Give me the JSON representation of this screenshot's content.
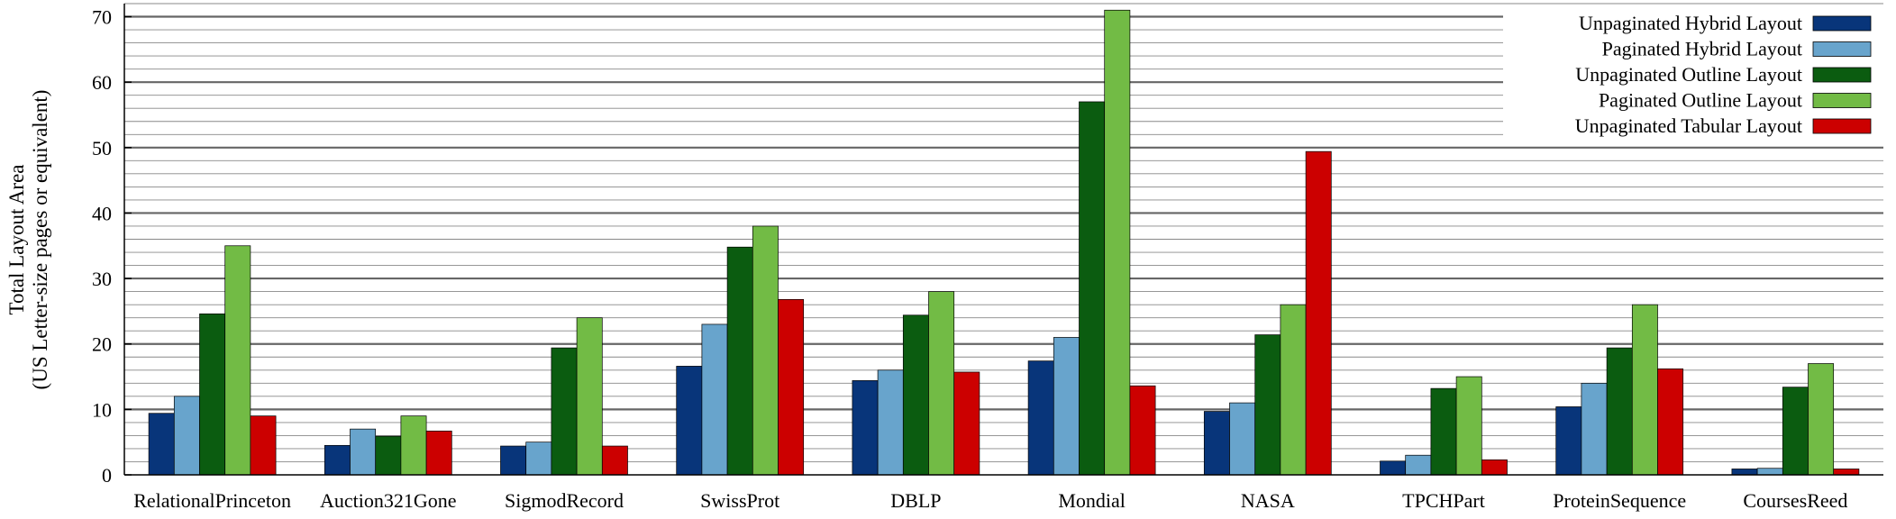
{
  "chart_data": {
    "type": "bar",
    "title": "",
    "xlabel": "",
    "ylabel": [
      "Total Layout Area",
      "(US Letter-size pages or equivalent)"
    ],
    "ylim": [
      0,
      72
    ],
    "yticks": [
      0,
      10,
      20,
      30,
      40,
      50,
      60,
      70
    ],
    "minor_grid_step": 2,
    "grid": true,
    "legend_position": "top-right",
    "categories": [
      "RelationalPrinceton",
      "Auction321Gone",
      "SigmodRecord",
      "SwissProt",
      "DBLP",
      "Mondial",
      "NASA",
      "TPCHPart",
      "ProteinSequence",
      "CoursesReed"
    ],
    "series": [
      {
        "name": "Unpaginated Hybrid Layout",
        "color": "#08357a",
        "values": [
          9.4,
          4.5,
          4.4,
          16.6,
          14.4,
          17.4,
          9.7,
          2.1,
          10.4,
          0.9
        ]
      },
      {
        "name": "Paginated Hybrid Layout",
        "color": "#68a4cc",
        "values": [
          12,
          7,
          5,
          23,
          16,
          21,
          11,
          3,
          14,
          1
        ]
      },
      {
        "name": "Unpaginated Outline Layout",
        "color": "#0b5c10",
        "values": [
          24.6,
          5.9,
          19.4,
          34.8,
          24.4,
          57,
          21.4,
          13.2,
          19.4,
          13.4
        ]
      },
      {
        "name": "Paginated Outline Layout",
        "color": "#72bb45",
        "values": [
          35,
          9,
          24,
          38,
          28,
          71,
          26,
          15,
          26,
          17
        ]
      },
      {
        "name": "Unpaginated Tabular Layout",
        "color": "#cc0000",
        "values": [
          9,
          6.7,
          4.4,
          26.8,
          15.7,
          13.6,
          49.4,
          2.3,
          16.2,
          0.9
        ]
      }
    ]
  }
}
